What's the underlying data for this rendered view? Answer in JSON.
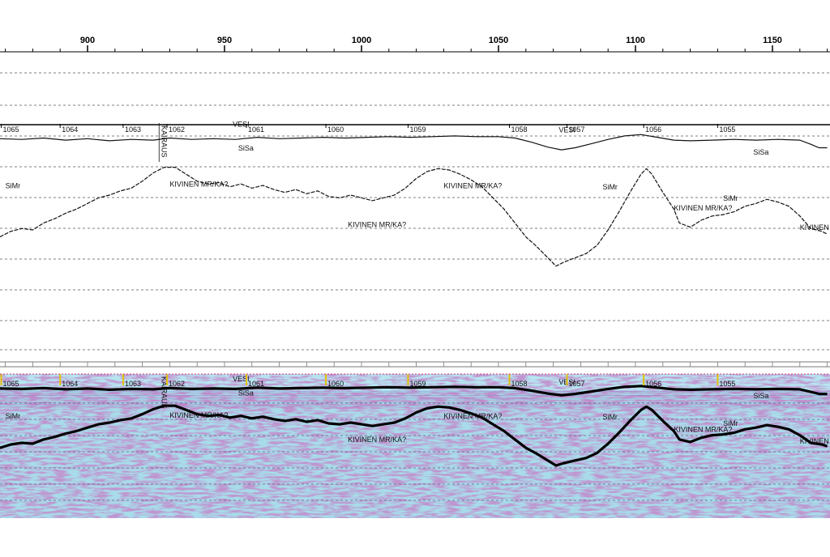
{
  "chart_data": {
    "type": "line",
    "x_ticks": [
      900,
      950,
      1000,
      1050,
      1100,
      1150
    ],
    "x_range": [
      868,
      1170
    ],
    "fix_numbers": [
      {
        "x": 868.5,
        "label": "1065"
      },
      {
        "x": 890,
        "label": "1064"
      },
      {
        "x": 913,
        "label": "1063"
      },
      {
        "x": 929,
        "label": "1062"
      },
      {
        "x": 958,
        "label": "1061"
      },
      {
        "x": 987,
        "label": "1060"
      },
      {
        "x": 1017,
        "label": "1059"
      },
      {
        "x": 1054,
        "label": "1058"
      },
      {
        "x": 1075,
        "label": "1057"
      },
      {
        "x": 1103,
        "label": "1056"
      },
      {
        "x": 1130,
        "label": "1055"
      }
    ],
    "series": [
      {
        "name": "VESI",
        "style": "solid-thin",
        "points": [
          [
            868,
            0.95
          ],
          [
            876,
            1.0
          ],
          [
            884,
            0.9
          ],
          [
            892,
            1.05
          ],
          [
            900,
            0.95
          ],
          [
            908,
            1.1
          ],
          [
            916,
            1.0
          ],
          [
            924,
            1.05
          ],
          [
            930,
            0.9
          ],
          [
            938,
            1.0
          ],
          [
            946,
            0.95
          ],
          [
            954,
            1.0
          ],
          [
            962,
            0.85
          ],
          [
            970,
            0.95
          ],
          [
            978,
            0.9
          ],
          [
            986,
            0.85
          ],
          [
            994,
            0.9
          ],
          [
            1002,
            0.85
          ],
          [
            1010,
            0.8
          ],
          [
            1018,
            0.85
          ],
          [
            1026,
            0.8
          ],
          [
            1034,
            0.75
          ],
          [
            1042,
            0.8
          ],
          [
            1050,
            0.8
          ],
          [
            1056,
            0.9
          ],
          [
            1062,
            1.2
          ],
          [
            1068,
            1.55
          ],
          [
            1073,
            1.75
          ],
          [
            1078,
            1.6
          ],
          [
            1084,
            1.3
          ],
          [
            1090,
            1.0
          ],
          [
            1096,
            0.75
          ],
          [
            1102,
            0.65
          ],
          [
            1108,
            0.85
          ],
          [
            1114,
            1.05
          ],
          [
            1120,
            1.1
          ],
          [
            1128,
            1.05
          ],
          [
            1136,
            1.0
          ],
          [
            1144,
            1.05
          ],
          [
            1152,
            1.0
          ],
          [
            1160,
            1.05
          ],
          [
            1164,
            1.35
          ],
          [
            1167,
            1.6
          ],
          [
            1170,
            1.6
          ]
        ]
      },
      {
        "name": "SiSa",
        "style": "dashed",
        "points": [
          [
            868,
            8.0
          ],
          [
            872,
            7.6
          ],
          [
            876,
            7.4
          ],
          [
            880,
            7.5
          ],
          [
            884,
            7.0
          ],
          [
            888,
            6.7
          ],
          [
            892,
            6.3
          ],
          [
            896,
            6.0
          ],
          [
            900,
            5.6
          ],
          [
            904,
            5.2
          ],
          [
            908,
            5.0
          ],
          [
            912,
            4.7
          ],
          [
            916,
            4.5
          ],
          [
            920,
            4.0
          ],
          [
            924,
            3.4
          ],
          [
            928,
            3.0
          ],
          [
            932,
            3.0
          ],
          [
            936,
            3.5
          ],
          [
            940,
            4.0
          ],
          [
            944,
            4.2
          ],
          [
            948,
            4.1
          ],
          [
            952,
            4.4
          ],
          [
            956,
            4.2
          ],
          [
            960,
            4.5
          ],
          [
            964,
            4.3
          ],
          [
            968,
            4.6
          ],
          [
            972,
            4.8
          ],
          [
            976,
            4.6
          ],
          [
            980,
            4.9
          ],
          [
            984,
            4.7
          ],
          [
            988,
            5.1
          ],
          [
            992,
            5.2
          ],
          [
            996,
            5.0
          ],
          [
            1000,
            5.2
          ],
          [
            1004,
            5.4
          ],
          [
            1008,
            5.2
          ],
          [
            1012,
            5.0
          ],
          [
            1016,
            4.5
          ],
          [
            1020,
            3.8
          ],
          [
            1024,
            3.3
          ],
          [
            1028,
            3.1
          ],
          [
            1032,
            3.2
          ],
          [
            1036,
            3.5
          ],
          [
            1040,
            3.9
          ],
          [
            1044,
            4.4
          ],
          [
            1048,
            5.2
          ],
          [
            1052,
            6.0
          ],
          [
            1056,
            7.0
          ],
          [
            1060,
            8.0
          ],
          [
            1064,
            8.7
          ],
          [
            1068,
            9.5
          ],
          [
            1071,
            10.1
          ],
          [
            1074,
            9.8
          ],
          [
            1078,
            9.5
          ],
          [
            1082,
            9.2
          ],
          [
            1086,
            8.6
          ],
          [
            1090,
            7.5
          ],
          [
            1094,
            6.2
          ],
          [
            1098,
            4.8
          ],
          [
            1102,
            3.5
          ],
          [
            1104,
            3.1
          ],
          [
            1106,
            3.5
          ],
          [
            1110,
            4.8
          ],
          [
            1114,
            6.0
          ],
          [
            1116,
            7.0
          ],
          [
            1120,
            7.3
          ],
          [
            1124,
            6.8
          ],
          [
            1128,
            6.5
          ],
          [
            1132,
            6.4
          ],
          [
            1136,
            6.2
          ],
          [
            1140,
            5.8
          ],
          [
            1144,
            5.6
          ],
          [
            1148,
            5.3
          ],
          [
            1152,
            5.5
          ],
          [
            1156,
            5.8
          ],
          [
            1160,
            6.5
          ],
          [
            1164,
            7.4
          ],
          [
            1168,
            7.6
          ],
          [
            1170,
            7.8
          ]
        ]
      }
    ],
    "annotations": [
      {
        "text": "VESI",
        "x": 953,
        "y": 0.1
      },
      {
        "text": "VESI",
        "x": 1072,
        "y": 0.5
      },
      {
        "text": "SiSa",
        "x": 955,
        "y": 1.8
      },
      {
        "text": "SiSa",
        "x": 1143,
        "y": 2.1
      },
      {
        "text": "SiMr",
        "x": 870,
        "y": 4.5
      },
      {
        "text": "SiMr",
        "x": 1088,
        "y": 4.6
      },
      {
        "text": "SiMr",
        "x": 1132,
        "y": 5.4
      },
      {
        "text": "KIVINEN MR/KA?",
        "x": 930,
        "y": 4.4
      },
      {
        "text": "KIVINEN MR/KA?",
        "x": 1030,
        "y": 4.5
      },
      {
        "text": "KIVINEN MR/KA?",
        "x": 995,
        "y": 7.3
      },
      {
        "text": "KIVINEN MR/KA?",
        "x": 1114,
        "y": 6.1
      },
      {
        "text": "KIVINEN MR/KA?",
        "x": 1160,
        "y": 7.5
      }
    ],
    "vertical_labels": [
      {
        "text": "KAIRAUS",
        "x": 927
      }
    ],
    "grid": true
  }
}
